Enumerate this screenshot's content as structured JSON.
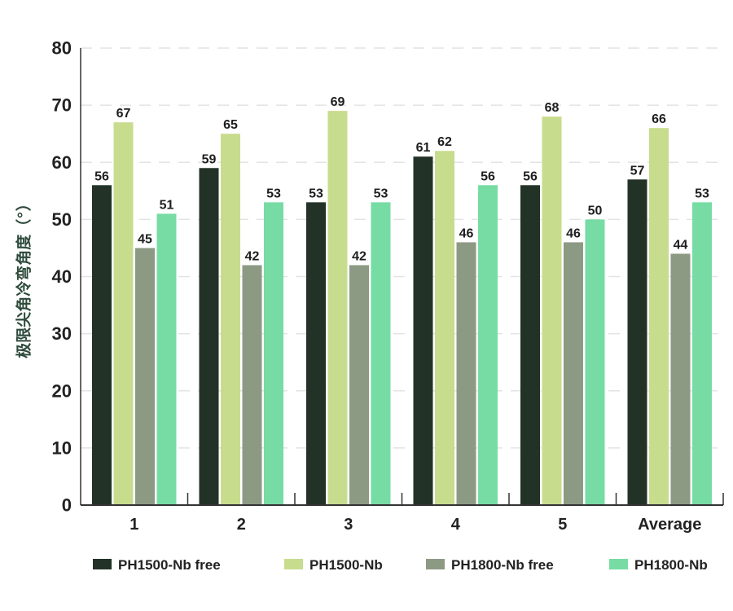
{
  "chart_data": {
    "type": "bar",
    "title": "",
    "xlabel": "",
    "ylabel": "极限尖角冷弯角度（°）",
    "ylim": [
      0,
      80
    ],
    "yticks": [
      0,
      10,
      20,
      30,
      40,
      50,
      60,
      70,
      80
    ],
    "grid": true,
    "legend_position": "bottom",
    "categories": [
      "1",
      "2",
      "3",
      "4",
      "5",
      "Average"
    ],
    "series": [
      {
        "name": "PH1500-Nb free",
        "color": "#223227",
        "values": [
          56,
          59,
          53,
          61,
          56,
          57
        ]
      },
      {
        "name": "PH1500-Nb",
        "color": "#c8dc8e",
        "values": [
          67,
          65,
          69,
          62,
          68,
          66
        ]
      },
      {
        "name": "PH1800-Nb free",
        "color": "#8c9a84",
        "values": [
          45,
          42,
          42,
          46,
          46,
          44
        ]
      },
      {
        "name": "PH1800-Nb",
        "color": "#76dca4",
        "values": [
          51,
          53,
          53,
          56,
          50,
          53
        ]
      }
    ]
  }
}
